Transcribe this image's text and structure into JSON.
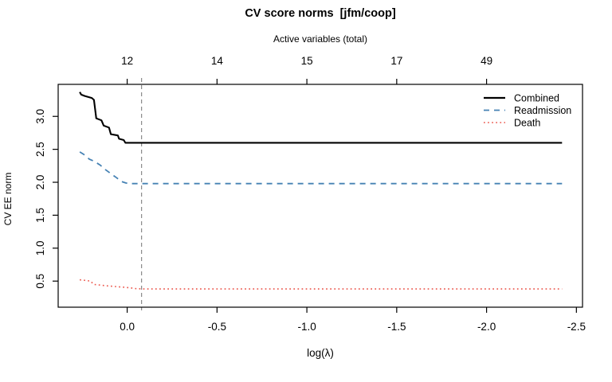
{
  "chart_data": {
    "type": "line",
    "title": "CV score norms  [jfm/coop]",
    "top_axis": {
      "label": "Active variables (total)",
      "tick_positions": [
        0.0,
        -0.5,
        -1.0,
        -1.5,
        -2.0
      ],
      "tick_labels": [
        "12",
        "14",
        "15",
        "17",
        "49"
      ]
    },
    "x_axis": {
      "label": "log(λ)",
      "reversed": true,
      "tick_positions": [
        0.0,
        -0.5,
        -1.0,
        -1.5,
        -2.0,
        -2.5
      ],
      "tick_labels": [
        "0.0",
        "-0.5",
        "-1.0",
        "-1.5",
        "-2.0",
        "-2.5"
      ],
      "range": [
        0.384,
        -2.534
      ]
    },
    "y_axis": {
      "label": "CV EE norm",
      "tick_positions": [
        0.5,
        1.0,
        1.5,
        2.0,
        2.5,
        3.0
      ],
      "tick_labels": [
        "0.5",
        "1.0",
        "1.5",
        "2.0",
        "2.5",
        "3.0"
      ],
      "range": [
        0.104,
        3.486
      ]
    },
    "reference_line": {
      "x": -0.08,
      "style": "dashed",
      "color": "#8a8a8a"
    },
    "grid": false,
    "legend": {
      "position": "top-right",
      "frame": false
    },
    "series": [
      {
        "name": "Combined",
        "color": "#000000",
        "style": "solid",
        "width": 2.1,
        "points": [
          [
            0.264,
            3.37
          ],
          [
            0.256,
            3.33
          ],
          [
            0.236,
            3.31
          ],
          [
            0.197,
            3.28
          ],
          [
            0.185,
            3.25
          ],
          [
            0.172,
            2.97
          ],
          [
            0.143,
            2.94
          ],
          [
            0.131,
            2.86
          ],
          [
            0.101,
            2.83
          ],
          [
            0.091,
            2.73
          ],
          [
            0.052,
            2.71
          ],
          [
            0.045,
            2.66
          ],
          [
            0.019,
            2.64
          ],
          [
            0.01,
            2.6
          ],
          [
            -2.42,
            2.6
          ]
        ]
      },
      {
        "name": "Readmission",
        "color": "#4682B4",
        "style": "dashed",
        "width": 1.8,
        "points": [
          [
            0.264,
            2.46
          ],
          [
            0.24,
            2.42
          ],
          [
            0.21,
            2.35
          ],
          [
            0.185,
            2.32
          ],
          [
            0.15,
            2.26
          ],
          [
            0.12,
            2.19
          ],
          [
            0.09,
            2.13
          ],
          [
            0.06,
            2.07
          ],
          [
            0.03,
            2.01
          ],
          [
            0.008,
            1.99
          ],
          [
            -0.01,
            1.98
          ],
          [
            -2.42,
            1.98
          ]
        ]
      },
      {
        "name": "Death",
        "color": "#EB5449",
        "style": "dotted",
        "width": 1.6,
        "points": [
          [
            0.264,
            0.52
          ],
          [
            0.23,
            0.51
          ],
          [
            0.205,
            0.5
          ],
          [
            0.185,
            0.45
          ],
          [
            0.15,
            0.44
          ],
          [
            0.12,
            0.43
          ],
          [
            0.08,
            0.42
          ],
          [
            0.03,
            0.41
          ],
          [
            -0.01,
            0.4
          ],
          [
            -0.05,
            0.385
          ],
          [
            -0.1,
            0.38
          ],
          [
            -2.42,
            0.38
          ]
        ]
      }
    ]
  }
}
